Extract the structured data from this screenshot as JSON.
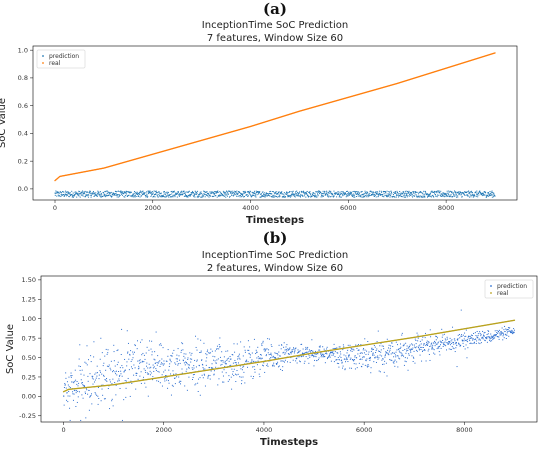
{
  "panels": [
    {
      "letter": "(a)",
      "title_line1": "InceptionTime SoC Prediction",
      "title_line2": "7 features, Window Size 60"
    },
    {
      "letter": "(b)",
      "title_line1": "InceptionTime SoC Prediction",
      "title_line2": "2 features, Window Size 60"
    }
  ],
  "colors": {
    "prediction_a": "#1f77b4",
    "real_a": "#ff7f0e",
    "prediction_b": "#2e6fd0",
    "real_b": "#b9a21f"
  },
  "chart_data": [
    {
      "type": "scatter",
      "title": "InceptionTime SoC Prediction\n7 features, Window Size 60",
      "xlabel": "Timesteps",
      "ylabel": "SoC Value",
      "xlim": [
        -450,
        9450
      ],
      "ylim": [
        -0.08,
        1.03
      ],
      "xticks": [
        0,
        2000,
        4000,
        6000,
        8000
      ],
      "yticks": [
        0.0,
        0.2,
        0.4,
        0.6,
        0.8,
        1.0
      ],
      "ytick_labels": [
        "0.0",
        "0.2",
        "0.4",
        "0.6",
        "0.8",
        "1.0"
      ],
      "legend": "top-left",
      "grid": false,
      "series": [
        {
          "name": "prediction",
          "color": "#1f77b4",
          "x": [
            0,
            1000,
            2000,
            3000,
            4000,
            5000,
            6000,
            7000,
            8000,
            9000
          ],
          "values": [
            -0.03,
            -0.03,
            -0.03,
            -0.03,
            -0.03,
            -0.03,
            -0.03,
            -0.03,
            -0.03,
            -0.03
          ],
          "spread": [
            -0.06,
            -0.015
          ]
        },
        {
          "name": "real",
          "color": "#ff7f0e",
          "x": [
            0,
            100,
            1000,
            2000,
            3000,
            4000,
            5000,
            6000,
            7000,
            8000,
            9000
          ],
          "values": [
            0.06,
            0.09,
            0.15,
            0.25,
            0.35,
            0.45,
            0.56,
            0.66,
            0.76,
            0.87,
            0.98
          ]
        }
      ]
    },
    {
      "type": "scatter",
      "title": "InceptionTime SoC Prediction\n2 features, Window Size 60",
      "xlabel": "Timesteps",
      "ylabel": "SoC Value",
      "xlim": [
        -450,
        9450
      ],
      "ylim": [
        -0.33,
        1.55
      ],
      "xticks": [
        0,
        2000,
        4000,
        6000,
        8000
      ],
      "yticks": [
        -0.25,
        0.0,
        0.25,
        0.5,
        0.75,
        1.0,
        1.25,
        1.5
      ],
      "ytick_labels": [
        "-0.25",
        "0.00",
        "0.25",
        "0.50",
        "0.75",
        "1.00",
        "1.25",
        "1.50"
      ],
      "legend": "top-right",
      "grid": false,
      "series": [
        {
          "name": "prediction",
          "color": "#2e6fd0",
          "x": [
            0,
            500,
            1000,
            2000,
            3000,
            4000,
            4500,
            5000,
            6000,
            7000,
            8000,
            9000
          ],
          "values": [
            0.02,
            0.2,
            0.3,
            0.38,
            0.42,
            0.48,
            0.55,
            0.55,
            0.5,
            0.62,
            0.72,
            0.83
          ],
          "noise_sd": [
            0.12,
            0.2,
            0.2,
            0.18,
            0.14,
            0.12,
            0.06,
            0.05,
            0.1,
            0.08,
            0.05,
            0.03
          ]
        },
        {
          "name": "real",
          "color": "#b9a21f",
          "x": [
            0,
            100,
            1000,
            2000,
            3000,
            4000,
            5000,
            6000,
            7000,
            8000,
            9000
          ],
          "values": [
            0.06,
            0.09,
            0.15,
            0.25,
            0.35,
            0.45,
            0.56,
            0.66,
            0.76,
            0.87,
            0.98
          ]
        }
      ]
    }
  ]
}
